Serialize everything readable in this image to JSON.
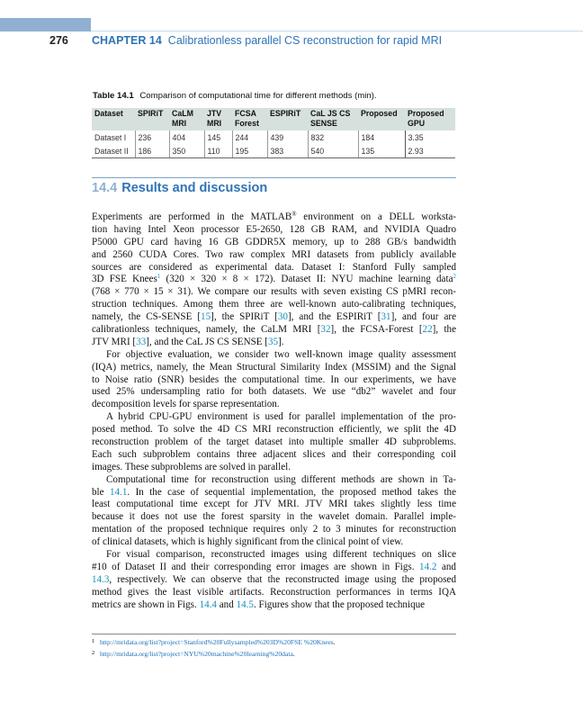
{
  "header": {
    "page_number": "276",
    "chapter": "CHAPTER 14",
    "chapter_title": "Calibrationless parallel CS reconstruction for rapid MRI"
  },
  "table": {
    "label": "Table 14.1",
    "caption": "Comparison of computational time for different methods (min).",
    "columns": [
      [
        "Dataset"
      ],
      [
        "SPIRiT"
      ],
      [
        "CaLM",
        "MRI"
      ],
      [
        "JTV",
        "MRI"
      ],
      [
        "FCSA",
        "Forest"
      ],
      [
        "ESPIRiT"
      ],
      [
        "CaL JS CS",
        "SENSE"
      ],
      [
        "Proposed"
      ],
      [
        "Proposed",
        "GPU"
      ]
    ],
    "rows": [
      [
        "Dataset I",
        "236",
        "404",
        "145",
        "244",
        "439",
        "832",
        "184",
        "3.35"
      ],
      [
        "Dataset II",
        "186",
        "350",
        "110",
        "195",
        "383",
        "540",
        "135",
        "2.93"
      ]
    ]
  },
  "section": {
    "number": "14.4",
    "title": "Results and discussion"
  },
  "paragraphs": [
    [
      [
        "Experiments are performed in the MATLAB",
        {
          "sup": "®"
        },
        " environment on a DELL worksta-"
      ],
      [
        "tion having Intel Xeon processor E5-2650, 128 GB RAM, and NVIDIA Quadro"
      ],
      [
        "P5000 GPU card having 16 GB GDDR5X memory, up to 288 GB/s bandwidth"
      ],
      [
        "and 2560 CUDA Cores. Two raw complex MRI datasets from publicly available"
      ],
      [
        "sources are considered as experimental data. Dataset I: Stanford Fully sampled"
      ],
      [
        "3D FSE Knees",
        {
          "supref": "1"
        },
        " (320 × 320 × 8 × 172). Dataset II: NYU machine learning data",
        {
          "supref": "2"
        }
      ],
      [
        "(768 × 770 × 15 × 31). We compare our results with seven existing CS pMRI recon-"
      ],
      [
        "struction techniques. Among them three are well-known auto-calibrating techniques,"
      ],
      [
        "namely, the CS-SENSE [",
        {
          "ref": "15"
        },
        "], the SPIRiT [",
        {
          "ref": "30"
        },
        "], and the ESPIRiT [",
        {
          "ref": "31"
        },
        "], and four are"
      ],
      [
        "calibrationless techniques, namely, the CaLM MRI [",
        {
          "ref": "32"
        },
        "], the FCSA-Forest [",
        {
          "ref": "22"
        },
        "], the"
      ],
      [
        "JTV MRI [",
        {
          "ref": "33"
        },
        "], and the CaL JS CS SENSE [",
        {
          "ref": "35"
        },
        "]."
      ]
    ],
    [
      [
        "For objective evaluation, we consider two well-known image quality assessment"
      ],
      [
        "(IQA) metrics, namely, the Mean Structural Similarity Index (MSSIM) and the Signal"
      ],
      [
        "to Noise ratio (SNR) besides the computational time. In our experiments, we have"
      ],
      [
        "used 25% undersampling ratio for both datasets. We use “db2” wavelet and four"
      ],
      [
        "decomposition levels for sparse representation."
      ]
    ],
    [
      [
        "A hybrid CPU-GPU environment is used for parallel implementation of the pro-"
      ],
      [
        "posed method. To solve the 4D CS MRI reconstruction efficiently, we split the 4D"
      ],
      [
        "reconstruction problem of the target dataset into multiple smaller 4D subproblems."
      ],
      [
        "Each such subproblem contains three adjacent slices and their corresponding coil"
      ],
      [
        "images. These subproblems are solved in parallel."
      ]
    ],
    [
      [
        "Computational time for reconstruction using different methods are shown in Ta-"
      ],
      [
        "ble ",
        {
          "ref": "14.1"
        },
        ". In the case of sequential implementation, the proposed method takes the"
      ],
      [
        "least computational time except for JTV MRI. JTV MRI takes slightly less time"
      ],
      [
        "because it does not use the forest sparsity in the wavelet domain. Parallel imple-"
      ],
      [
        "mentation of the proposed technique requires only 2 to 3 minutes for reconstruction"
      ],
      [
        "of clinical datasets, which is highly significant from the clinical point of view."
      ]
    ],
    [
      [
        "For visual comparison, reconstructed images using different techniques on slice"
      ],
      [
        "#10 of Dataset II and their corresponding error images are shown in Figs. ",
        {
          "ref": "14.2"
        },
        " and"
      ],
      [
        {
          "ref": "14.3"
        },
        ", respectively. We can observe that the reconstructed image using the proposed"
      ],
      [
        "method gives the least visible artifacts. Reconstruction performances in terms IQA"
      ],
      [
        "metrics are shown in Figs. ",
        {
          "ref": "14.4"
        },
        " and ",
        {
          "ref": "14.5"
        },
        ". Figures show that the proposed technique"
      ]
    ]
  ],
  "footnotes": [
    {
      "number": "1",
      "url": "http://mridata.org/list?project=Stanford%20Fullysampled%203D%20FSE %20Knees",
      "trail": "."
    },
    {
      "number": "2",
      "url": "http://mridata.org/list?project=NYU%20machine%20learning%20data",
      "trail": "."
    }
  ],
  "colors": {
    "accent": "#2e74b5",
    "link": "#1a8fc0",
    "header_band": "#8fb0d3",
    "table_header": "#d6e0dc"
  }
}
